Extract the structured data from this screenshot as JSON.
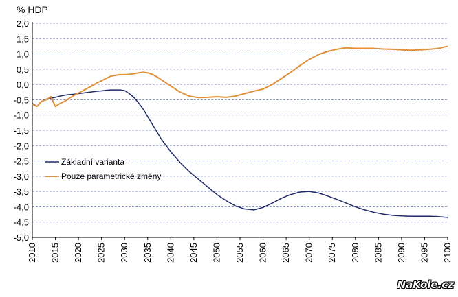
{
  "chart_data": {
    "type": "line",
    "title": "",
    "ylabel": "% HDP",
    "xlabel": "",
    "xlim": [
      2010,
      2100
    ],
    "ylim": [
      -5.0,
      2.0
    ],
    "y_ticks": [
      "2,0",
      "1,5",
      "1,0",
      "0,5",
      "0,0",
      "-0,5",
      "-1,0",
      "-1,5",
      "-2,0",
      "-2,5",
      "-3,0",
      "-3,5",
      "-4,0",
      "-4,5",
      "-5,0"
    ],
    "x_ticks": [
      "2010",
      "2015",
      "2020",
      "2025",
      "2030",
      "2035",
      "2040",
      "2045",
      "2050",
      "2055",
      "2060",
      "2065",
      "2070",
      "2075",
      "2080",
      "2085",
      "2090",
      "2095",
      "2100"
    ],
    "grid": "horizontal dashed",
    "legend_position": "middle-left",
    "series": [
      {
        "name": "Základní varianta",
        "color": "#1f2a6b",
        "x": [
          2010,
          2011,
          2012,
          2013,
          2014,
          2015,
          2016,
          2017,
          2018,
          2019,
          2020,
          2021,
          2022,
          2023,
          2024,
          2025,
          2026,
          2027,
          2028,
          2029,
          2030,
          2031,
          2032,
          2033,
          2034,
          2035,
          2036,
          2037,
          2038,
          2039,
          2040,
          2042,
          2044,
          2046,
          2048,
          2050,
          2052,
          2054,
          2056,
          2058,
          2060,
          2062,
          2064,
          2066,
          2068,
          2070,
          2072,
          2074,
          2076,
          2078,
          2080,
          2082,
          2084,
          2086,
          2088,
          2090,
          2092,
          2094,
          2096,
          2098,
          2100
        ],
        "values": [
          -0.62,
          -0.72,
          -0.55,
          -0.48,
          -0.45,
          -0.42,
          -0.38,
          -0.35,
          -0.33,
          -0.32,
          -0.3,
          -0.28,
          -0.26,
          -0.24,
          -0.22,
          -0.21,
          -0.19,
          -0.18,
          -0.18,
          -0.18,
          -0.2,
          -0.3,
          -0.42,
          -0.6,
          -0.8,
          -1.05,
          -1.3,
          -1.55,
          -1.8,
          -2.0,
          -2.2,
          -2.55,
          -2.85,
          -3.1,
          -3.35,
          -3.6,
          -3.8,
          -3.97,
          -4.07,
          -4.1,
          -4.02,
          -3.88,
          -3.72,
          -3.6,
          -3.52,
          -3.5,
          -3.55,
          -3.65,
          -3.76,
          -3.88,
          -4.0,
          -4.1,
          -4.18,
          -4.24,
          -4.28,
          -4.3,
          -4.31,
          -4.31,
          -4.31,
          -4.32,
          -4.35
        ]
      },
      {
        "name": "Pouze parametrické změny",
        "color": "#e0913a",
        "x": [
          2010,
          2011,
          2012,
          2013,
          2014,
          2015,
          2016,
          2017,
          2018,
          2019,
          2020,
          2021,
          2022,
          2023,
          2024,
          2025,
          2026,
          2027,
          2028,
          2029,
          2030,
          2031,
          2032,
          2033,
          2034,
          2035,
          2036,
          2037,
          2038,
          2039,
          2040,
          2042,
          2044,
          2046,
          2048,
          2050,
          2052,
          2054,
          2056,
          2058,
          2060,
          2062,
          2064,
          2066,
          2068,
          2070,
          2072,
          2074,
          2076,
          2078,
          2080,
          2082,
          2084,
          2086,
          2088,
          2090,
          2092,
          2094,
          2096,
          2098,
          2100
        ],
        "values": [
          -0.65,
          -0.72,
          -0.55,
          -0.5,
          -0.4,
          -0.72,
          -0.62,
          -0.55,
          -0.45,
          -0.36,
          -0.28,
          -0.2,
          -0.12,
          -0.04,
          0.05,
          0.12,
          0.2,
          0.27,
          0.3,
          0.32,
          0.32,
          0.33,
          0.35,
          0.38,
          0.4,
          0.38,
          0.33,
          0.25,
          0.15,
          0.05,
          -0.05,
          -0.25,
          -0.38,
          -0.43,
          -0.42,
          -0.4,
          -0.42,
          -0.38,
          -0.3,
          -0.22,
          -0.15,
          0.0,
          0.2,
          0.4,
          0.62,
          0.82,
          0.98,
          1.08,
          1.15,
          1.2,
          1.18,
          1.18,
          1.18,
          1.16,
          1.15,
          1.13,
          1.12,
          1.13,
          1.15,
          1.18,
          1.25
        ]
      }
    ]
  },
  "watermark": "NaKole.cz"
}
